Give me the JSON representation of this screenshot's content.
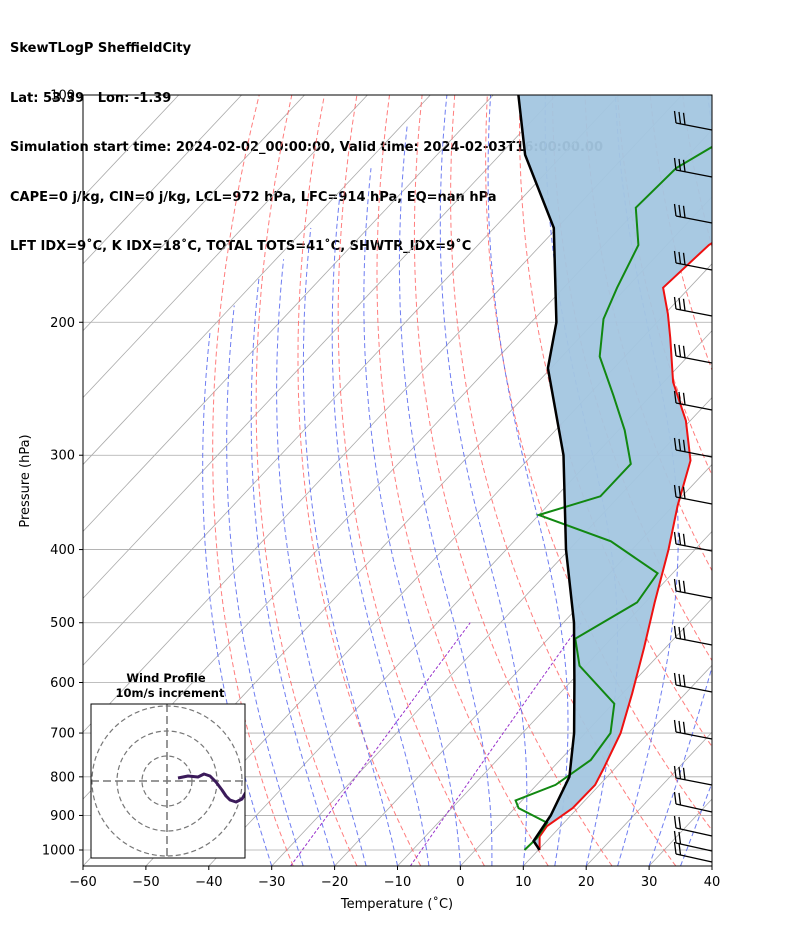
{
  "header": {
    "line1": "SkewTLogP SheffieldCity",
    "line2": "Lat: 53.39   Lon: -1.39",
    "line3": "Simulation start time: 2024-02-02_00:00:00, Valid time: 2024-02-03T16:00:00.00",
    "line4": "CAPE=0 j/kg, CIN=0 j/kg, LCL=972 hPa, LFC=914 hPa, EQ=nan hPa",
    "line5": "LFT IDX=9˚C, K IDX=18˚C, TOTAL TOTS=41˚C, SHWTR_IDX=9˚C"
  },
  "colors": {
    "temperature": "#ee1111",
    "dewpoint": "#118811",
    "parcel": "#000000",
    "shade": "#a3c6e0",
    "dry_adiabat": "#ff6666",
    "moist_adiabat": "#5566ee",
    "mixing_ratio": "#9933cc",
    "isotherm": "#aaaaaa"
  },
  "chart_data": {
    "type": "line",
    "title": "",
    "xlabel": "Temperature (˚C)",
    "ylabel": "Pressure (hPa)",
    "xlim": [
      -60,
      40
    ],
    "ylim": [
      1050,
      100
    ],
    "yscale": "log",
    "skew": true,
    "grid": true,
    "xticks": [
      -60,
      -50,
      -40,
      -30,
      -20,
      -10,
      0,
      10,
      20,
      30,
      40
    ],
    "yticks": [
      100,
      200,
      300,
      400,
      500,
      600,
      700,
      800,
      900,
      1000
    ],
    "series": [
      {
        "kind": "temperature",
        "points": [
          [
            10.2,
            1000
          ],
          [
            8.2,
            960
          ],
          [
            7.8,
            930
          ],
          [
            9.2,
            880
          ],
          [
            9.3,
            820
          ],
          [
            8.2,
            780
          ],
          [
            5.6,
            700
          ],
          [
            1.5,
            620
          ],
          [
            -3.4,
            540
          ],
          [
            -8.5,
            470
          ],
          [
            -14.2,
            400
          ],
          [
            -19.3,
            350
          ],
          [
            -24.0,
            305
          ],
          [
            -30.7,
            270
          ],
          [
            -38.5,
            240
          ],
          [
            -45.5,
            210
          ],
          [
            -49.5,
            195
          ],
          [
            -54.2,
            180
          ],
          [
            -53.3,
            158
          ],
          [
            -48.3,
            137
          ],
          [
            -43.0,
            121
          ],
          [
            -35.5,
            110
          ],
          [
            -28.0,
            100
          ]
        ]
      },
      {
        "kind": "dewpoint",
        "points": [
          [
            7.8,
            1000
          ],
          [
            8.0,
            965
          ],
          [
            7.3,
            920
          ],
          [
            0.6,
            880
          ],
          [
            -1.0,
            860
          ],
          [
            3.0,
            820
          ],
          [
            4.9,
            760
          ],
          [
            4.0,
            700
          ],
          [
            0.2,
            640
          ],
          [
            -11.0,
            570
          ],
          [
            -15.7,
            525
          ],
          [
            -11.3,
            470
          ],
          [
            -12.4,
            430
          ],
          [
            -24.6,
            390
          ],
          [
            -40.0,
            360
          ],
          [
            -33.0,
            340
          ],
          [
            -33.0,
            308
          ],
          [
            -39.0,
            278
          ],
          [
            -46.0,
            250
          ],
          [
            -54.0,
            222
          ],
          [
            -59.0,
            198
          ],
          [
            -61.5,
            180
          ],
          [
            -64.5,
            158
          ],
          [
            -70.5,
            141
          ],
          [
            -70.0,
            125
          ],
          [
            -65.0,
            110
          ],
          [
            -60.0,
            100
          ]
        ]
      },
      {
        "kind": "parcel",
        "points": [
          [
            10.2,
            1000
          ],
          [
            7.9,
            973
          ],
          [
            6.8,
            900
          ],
          [
            4.0,
            800
          ],
          [
            -1.8,
            700
          ],
          [
            -9.3,
            600
          ],
          [
            -18.3,
            500
          ],
          [
            -30.5,
            400
          ],
          [
            -45.0,
            300
          ],
          [
            -60.5,
            230
          ],
          [
            -66.0,
            200
          ],
          [
            -80.5,
            150
          ],
          [
            -96.0,
            120
          ],
          [
            -106.0,
            100
          ]
        ]
      }
    ],
    "inset": {
      "title": "Wind Profile",
      "subtitle": "10m/s increment"
    }
  }
}
